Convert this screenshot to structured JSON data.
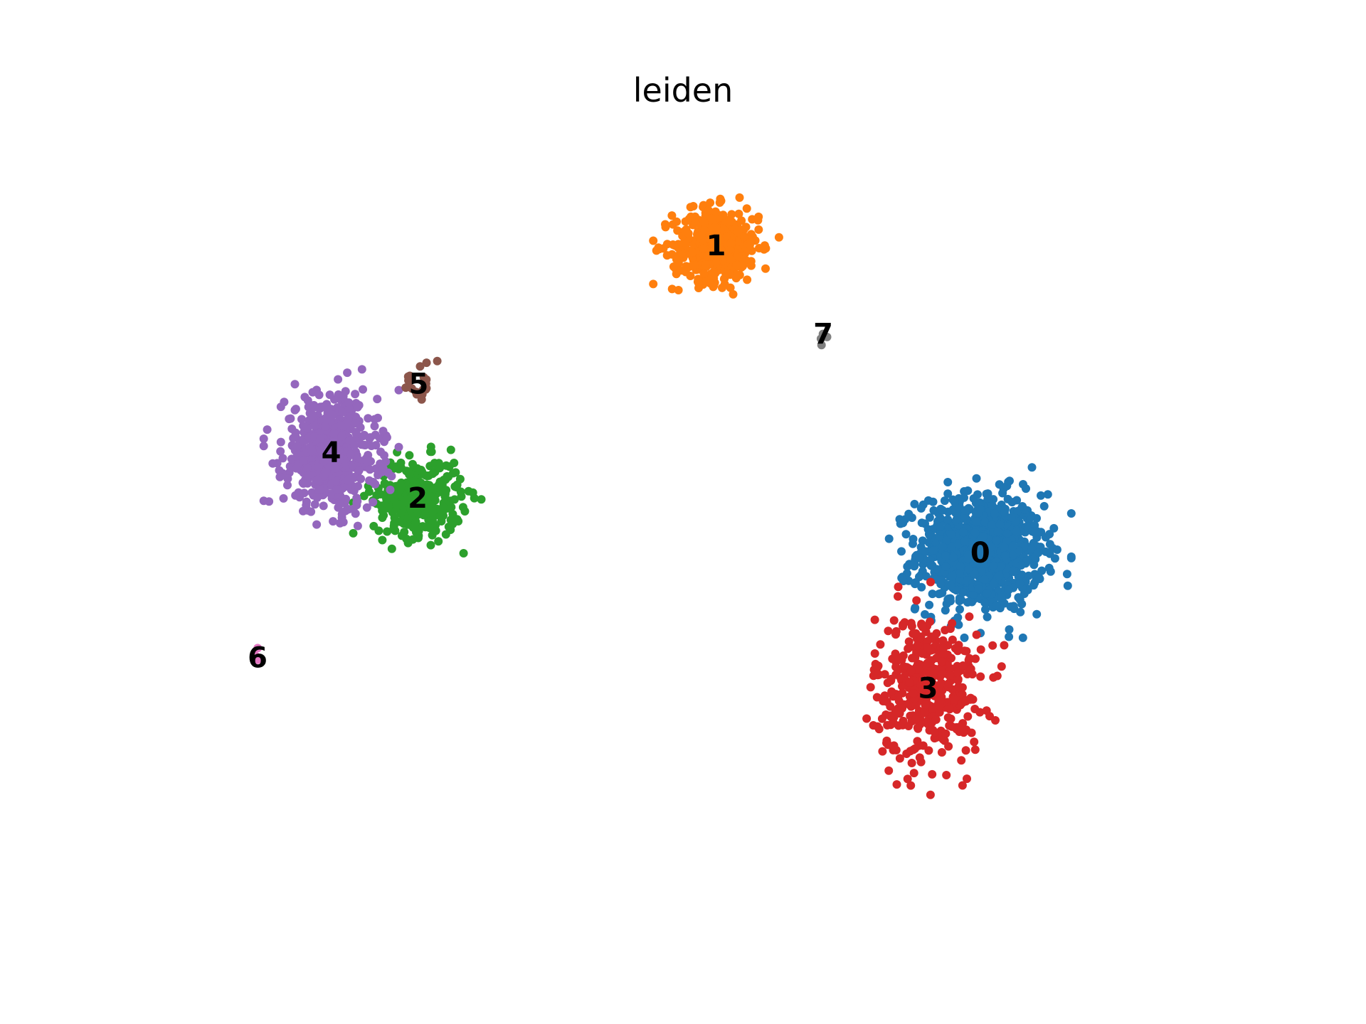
{
  "chart_data": {
    "type": "scatter",
    "title": "leiden",
    "xlabel": "",
    "ylabel": "",
    "axes_visible": false,
    "grid": false,
    "legend": "on data",
    "xlim": [
      0,
      100
    ],
    "ylim": [
      0,
      100
    ],
    "clusters": [
      {
        "label": "0",
        "color": "#1f77b4",
        "center": [
          78.1,
          45.6
        ],
        "spread": [
          5.8,
          7.0
        ],
        "n": 950
      },
      {
        "label": "1",
        "color": "#ff7f0e",
        "center": [
          51.2,
          86.0
        ],
        "spread": [
          4.0,
          4.4
        ],
        "n": 430
      },
      {
        "label": "2",
        "color": "#2ca02c",
        "center": [
          20.8,
          52.8
        ],
        "spread": [
          4.1,
          4.6
        ],
        "n": 340
      },
      {
        "label": "3",
        "color": "#d62728",
        "center": [
          72.8,
          27.8
        ],
        "spread": [
          4.9,
          8.8
        ],
        "n": 420
      },
      {
        "label": "4",
        "color": "#9467bd",
        "center": [
          12.0,
          58.8
        ],
        "spread": [
          4.3,
          6.8
        ],
        "n": 580
      },
      {
        "label": "5",
        "color": "#8c564b",
        "center": [
          20.9,
          67.8
        ],
        "spread": [
          1.8,
          2.4
        ],
        "n": 22
      },
      {
        "label": "6",
        "color": "#e377c2",
        "center": [
          4.5,
          31.8
        ],
        "spread": [
          0.2,
          1.4
        ],
        "n": 4
      },
      {
        "label": "7",
        "color": "#7f7f7f",
        "center": [
          62.1,
          74.4
        ],
        "spread": [
          0.6,
          1.6
        ],
        "n": 4
      }
    ]
  }
}
